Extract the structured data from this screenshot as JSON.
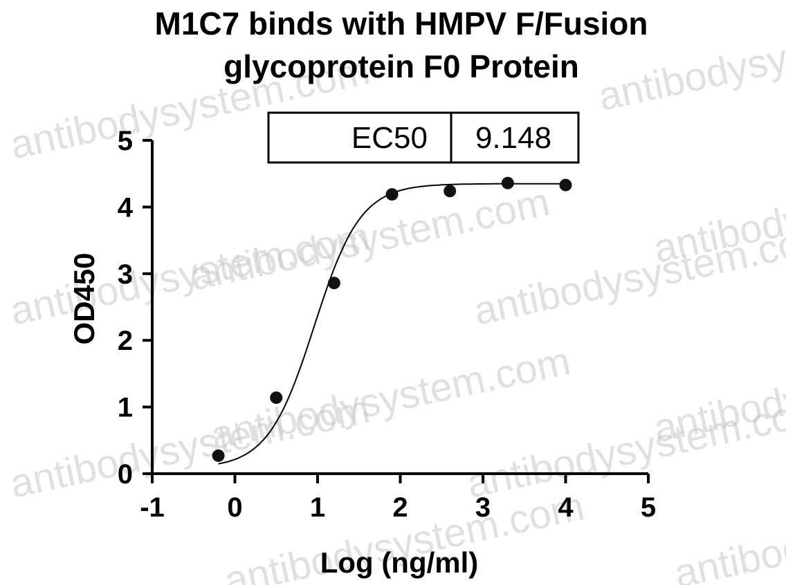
{
  "watermark": "antibodysystem.com",
  "watermark_color": "#c8c8c8",
  "chart_data": {
    "type": "scatter",
    "title_line1": "M1C7 binds with HMPV F/Fusion",
    "title_line2": "glycoprotein F0 Protein",
    "xlabel": "Log (ng/ml)",
    "ylabel": "OD450",
    "xlim": [
      -1,
      5
    ],
    "ylim": [
      0,
      5
    ],
    "x_ticks": [
      -1,
      0,
      1,
      2,
      3,
      4,
      5
    ],
    "y_ticks": [
      0,
      1,
      2,
      3,
      4,
      5
    ],
    "x_tick_labels": [
      "-1",
      "0",
      "1",
      "2",
      "3",
      "4",
      "5"
    ],
    "y_tick_labels": [
      "0",
      "1",
      "2",
      "3",
      "4",
      "5"
    ],
    "grid": false,
    "series": [
      {
        "x": [
          -0.2,
          0.5,
          1.2,
          1.9,
          2.6,
          3.3,
          4.0
        ],
        "y": [
          0.27,
          1.14,
          2.86,
          4.19,
          4.24,
          4.36,
          4.33
        ],
        "fit": "four-parameter logistic"
      }
    ],
    "ec50_table": {
      "label": "EC50",
      "value": "9.148"
    }
  }
}
